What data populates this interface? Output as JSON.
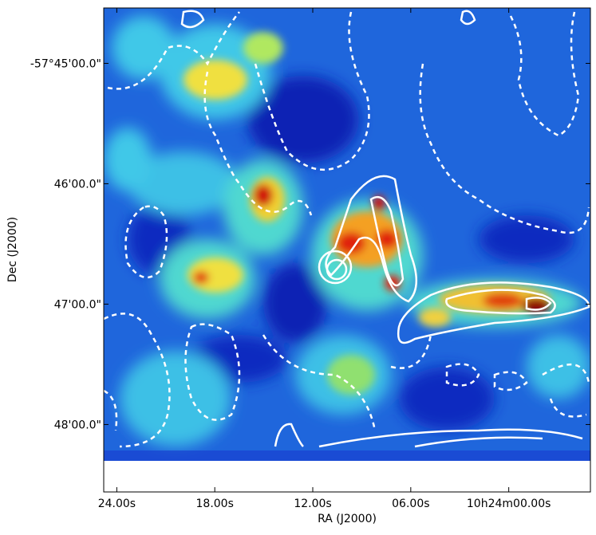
{
  "chart_data": {
    "type": "image",
    "xlabel": "RA (J2000)",
    "ylabel": "Dec (J2000)",
    "xlim": [
      24.8,
      -5.0
    ],
    "xticks": [
      {
        "value": 24,
        "label": "24.00s"
      },
      {
        "value": 18,
        "label": "18.00s"
      },
      {
        "value": 12,
        "label": "12.00s"
      },
      {
        "value": 6,
        "label": "06.00s"
      },
      {
        "value": 0,
        "label": "10h24m00.00s"
      }
    ],
    "ylim": [
      48.56,
      44.54
    ],
    "yticks": [
      {
        "value": 45,
        "label": "-57°45'00.0\""
      },
      {
        "value": 46,
        "label": "46'00.0\""
      },
      {
        "value": 47,
        "label": "47'00.0\""
      },
      {
        "value": 48,
        "label": "48'00.0\""
      }
    ]
  }
}
